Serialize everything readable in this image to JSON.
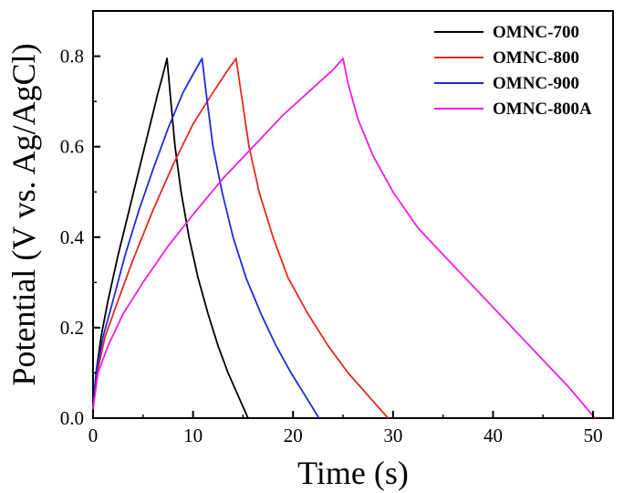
{
  "chart_data": {
    "type": "line",
    "title": "",
    "xlabel": "Time (s)",
    "ylabel": "Potential (V vs. Ag/AgCl)",
    "xlim": [
      0,
      52
    ],
    "ylim": [
      0,
      0.9
    ],
    "x_ticks": [
      "0",
      "10",
      "20",
      "30",
      "40",
      "50"
    ],
    "y_ticks": [
      "0.0",
      "0.2",
      "0.4",
      "0.6",
      "0.8"
    ],
    "legend": "top-right",
    "grid": false,
    "series": [
      {
        "name": "OMNC-700",
        "color": "#000000",
        "points": [
          [
            0,
            0.02
          ],
          [
            0.3,
            0.1
          ],
          [
            0.8,
            0.18
          ],
          [
            1.5,
            0.26
          ],
          [
            2.5,
            0.36
          ],
          [
            3.5,
            0.45
          ],
          [
            4.5,
            0.54
          ],
          [
            5.5,
            0.63
          ],
          [
            6.5,
            0.72
          ],
          [
            7.0,
            0.76
          ],
          [
            7.4,
            0.795
          ],
          [
            7.7,
            0.72
          ],
          [
            8.2,
            0.6
          ],
          [
            8.8,
            0.5
          ],
          [
            9.6,
            0.4
          ],
          [
            10.5,
            0.31
          ],
          [
            11.5,
            0.23
          ],
          [
            12.5,
            0.16
          ],
          [
            13.5,
            0.1
          ],
          [
            14.5,
            0.05
          ],
          [
            15.5,
            0.0
          ]
        ]
      },
      {
        "name": "OMNC-800",
        "color": "#e32a1c",
        "points": [
          [
            0,
            0.02
          ],
          [
            0.4,
            0.1
          ],
          [
            1.2,
            0.18
          ],
          [
            2.5,
            0.26
          ],
          [
            4,
            0.35
          ],
          [
            6,
            0.46
          ],
          [
            8,
            0.56
          ],
          [
            10,
            0.65
          ],
          [
            12,
            0.72
          ],
          [
            13.5,
            0.77
          ],
          [
            14.3,
            0.795
          ],
          [
            14.8,
            0.72
          ],
          [
            15.6,
            0.6
          ],
          [
            16.6,
            0.5
          ],
          [
            18,
            0.4
          ],
          [
            19.5,
            0.31
          ],
          [
            21.5,
            0.23
          ],
          [
            23.5,
            0.16
          ],
          [
            25.5,
            0.1
          ],
          [
            27.5,
            0.05
          ],
          [
            29.5,
            0.0
          ]
        ]
      },
      {
        "name": "OMNC-900",
        "color": "#1f2bd9",
        "points": [
          [
            0,
            0.02
          ],
          [
            0.3,
            0.1
          ],
          [
            1,
            0.18
          ],
          [
            2,
            0.26
          ],
          [
            3.2,
            0.36
          ],
          [
            4.6,
            0.46
          ],
          [
            6,
            0.55
          ],
          [
            7.5,
            0.64
          ],
          [
            9,
            0.72
          ],
          [
            10,
            0.76
          ],
          [
            10.9,
            0.795
          ],
          [
            11.3,
            0.72
          ],
          [
            12,
            0.6
          ],
          [
            12.9,
            0.5
          ],
          [
            14,
            0.4
          ],
          [
            15.3,
            0.31
          ],
          [
            16.8,
            0.23
          ],
          [
            18.3,
            0.16
          ],
          [
            19.8,
            0.1
          ],
          [
            21.2,
            0.05
          ],
          [
            22.6,
            0.0
          ]
        ]
      },
      {
        "name": "OMNC-800A",
        "color": "#ee1ee6",
        "points": [
          [
            0,
            0.02
          ],
          [
            0.5,
            0.1
          ],
          [
            1.5,
            0.16
          ],
          [
            3,
            0.23
          ],
          [
            5,
            0.3
          ],
          [
            7.5,
            0.38
          ],
          [
            10,
            0.45
          ],
          [
            13,
            0.53
          ],
          [
            16,
            0.6
          ],
          [
            19,
            0.67
          ],
          [
            22,
            0.73
          ],
          [
            24,
            0.77
          ],
          [
            25,
            0.795
          ],
          [
            25.5,
            0.74
          ],
          [
            26.5,
            0.66
          ],
          [
            28,
            0.58
          ],
          [
            30,
            0.5
          ],
          [
            32.5,
            0.42
          ],
          [
            35.5,
            0.35
          ],
          [
            38.5,
            0.28
          ],
          [
            41.5,
            0.21
          ],
          [
            44.5,
            0.14
          ],
          [
            47.5,
            0.07
          ],
          [
            50.2,
            0.0
          ]
        ]
      }
    ]
  }
}
